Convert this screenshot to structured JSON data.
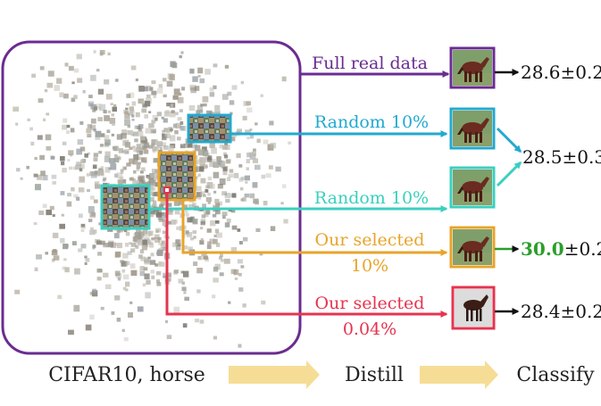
{
  "colors": {
    "purple": "#6a2c91",
    "cyan": "#22a9cf",
    "teal": "#3bcfbf",
    "orange": "#e8a42a",
    "red": "#e5344f",
    "green": "#2a9e2a",
    "flow_arrow": "#f6dd96"
  },
  "dataset_box": {
    "point_cloud": "scatter of CIFAR10 horse images"
  },
  "branches": [
    {
      "label": "Full real data",
      "color": "purple",
      "thumbnail": "horse-thumbnail-icon"
    },
    {
      "label": "Random 10%",
      "color": "cyan",
      "thumbnail": "horse-thumbnail-icon"
    },
    {
      "label": "Random 10%",
      "color": "teal",
      "thumbnail": "horse-thumbnail-icon"
    },
    {
      "label_line1": "Our selected",
      "label_line2": "10%",
      "color": "orange",
      "thumbnail": "horse-thumbnail-icon"
    },
    {
      "label_line1": "Our selected",
      "label_line2": "0.04%",
      "color": "red",
      "thumbnail": "horse-thumbnail-icon"
    }
  ],
  "results": {
    "full": "28.6±0.2",
    "random": "28.5±0.3",
    "ours10_bold": "30.0",
    "ours10_rest": "±0.2",
    "ours004": "28.4±0.2"
  },
  "pipeline": {
    "step1": "CIFAR10, horse",
    "step2": "Distill",
    "step3": "Classify"
  }
}
